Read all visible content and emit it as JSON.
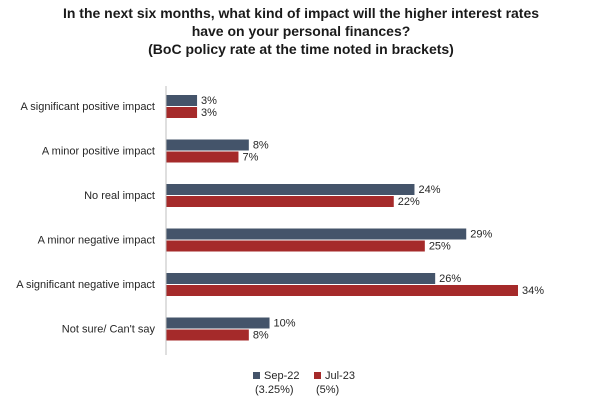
{
  "chart_data": {
    "type": "bar",
    "orientation": "horizontal",
    "title_lines": [
      "In the next six months, what kind of impact will the higher interest rates",
      "have on your personal finances?",
      "(BoC policy rate at the time noted in brackets)"
    ],
    "categories": [
      "A significant positive impact",
      "A minor positive impact",
      "No real impact",
      "A minor negative impact",
      "A significant negative impact",
      "Not sure/ Can't say"
    ],
    "series": [
      {
        "name": "Sep-22",
        "note": "(3.25%)",
        "color": "#44546A",
        "values": [
          3,
          8,
          24,
          29,
          26,
          10
        ],
        "labels": [
          "3%",
          "8%",
          "24%",
          "29%",
          "26%",
          "10%"
        ]
      },
      {
        "name": "Jul-23",
        "note": "(5%)",
        "color": "#A52A2A",
        "values": [
          3,
          7,
          22,
          25,
          34,
          8
        ],
        "labels": [
          "3%",
          "7%",
          "22%",
          "25%",
          "34%",
          "8%"
        ]
      }
    ],
    "xlim": [
      0,
      40
    ],
    "grid": false,
    "legend_position": "bottom"
  }
}
